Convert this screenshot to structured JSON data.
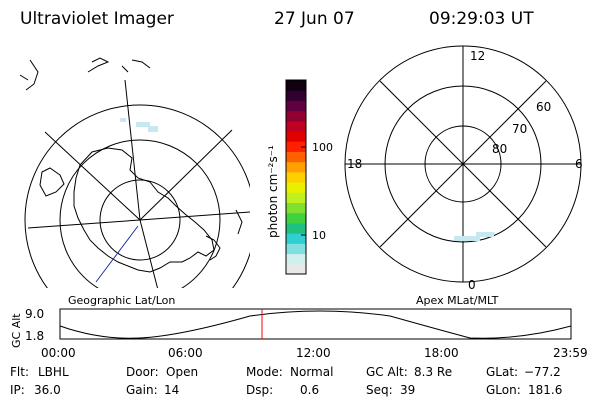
{
  "header": {
    "instrument": "Ultraviolet Imager",
    "date": "27 Jun 07",
    "time": "09:29:03 UT"
  },
  "left_map": {
    "label": "Geographic Lat/Lon"
  },
  "colorbar": {
    "unit_label": "photon cm⁻²s⁻¹",
    "ticks": [
      {
        "value": 100,
        "label": "100"
      },
      {
        "value": 10,
        "label": "10"
      }
    ],
    "colors": [
      "#e8e8e8",
      "#d0f0f0",
      "#80e0e0",
      "#30d0d0",
      "#20c080",
      "#40d040",
      "#80e030",
      "#c0f020",
      "#e8f000",
      "#ffd000",
      "#ffa000",
      "#ff6000",
      "#ff2000",
      "#e00000",
      "#c00020",
      "#900030",
      "#600040",
      "#300030",
      "#100010"
    ]
  },
  "right_map": {
    "label": "Apex MLat/MLT",
    "mlt_labels": [
      {
        "text": "12",
        "pos": "top"
      },
      {
        "text": "18",
        "pos": "left"
      },
      {
        "text": "6",
        "pos": "right"
      },
      {
        "text": "0",
        "pos": "bottom"
      }
    ],
    "lat_labels": [
      "60",
      "70",
      "80"
    ]
  },
  "altitude_plot": {
    "y_label": "GC Alt",
    "y_ticks": [
      "9.0",
      "1.8"
    ],
    "x_ticks": [
      "00:00",
      "06:00",
      "12:00",
      "18:00",
      "23:59"
    ],
    "current_time_marker": "09:29",
    "marker_color": "#ff0000"
  },
  "status": {
    "flt_label": "Flt:",
    "flt_value": "LBHL",
    "ip_label": "IP:",
    "ip_value": "36.0",
    "door_label": "Door:",
    "door_value": "Open",
    "gain_label": "Gain:",
    "gain_value": "14",
    "mode_label": "Mode:",
    "mode_value": "Normal",
    "dsp_label": "Dsp:",
    "dsp_value": "0.6",
    "gcalt_label": "GC Alt:",
    "gcalt_value": "8.3 Re",
    "seq_label": "Seq:",
    "seq_value": "39",
    "glat_label": "GLat:",
    "glat_value": "−77.2",
    "glon_label": "GLon:",
    "glon_value": "181.6"
  }
}
